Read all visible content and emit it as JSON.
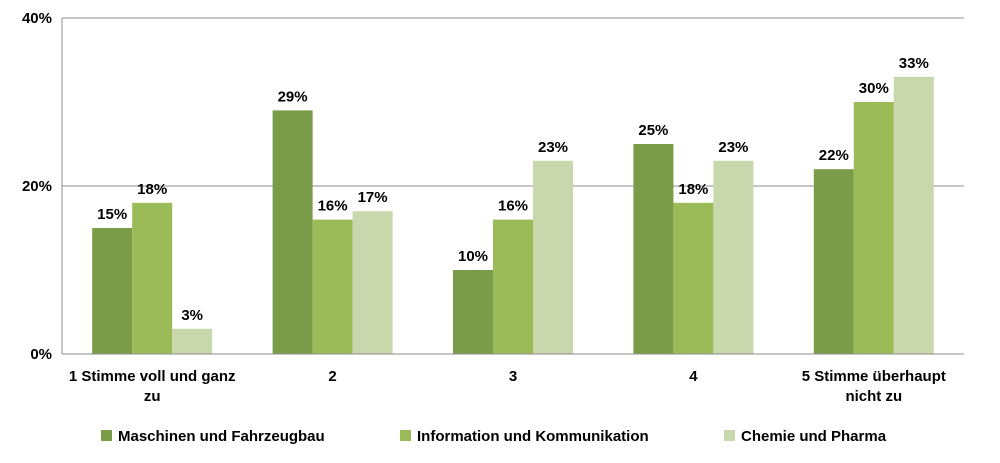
{
  "chart_data": {
    "type": "bar",
    "categories": [
      [
        "1 Stimme voll und ganz",
        "zu"
      ],
      [
        "2"
      ],
      [
        "3"
      ],
      [
        "4"
      ],
      [
        "5 Stimme überhaupt",
        "nicht zu"
      ]
    ],
    "series": [
      {
        "name": "Maschinen und Fahrzeugbau",
        "color": "#7a9b47",
        "values": [
          15,
          29,
          10,
          25,
          22
        ]
      },
      {
        "name": "Information und Kommunikation",
        "color": "#9bbb59",
        "values": [
          18,
          16,
          16,
          18,
          30
        ]
      },
      {
        "name": "Chemie und Pharma",
        "color": "#c9d7ad",
        "values": [
          3,
          17,
          23,
          23,
          33
        ]
      }
    ],
    "ylim": [
      0,
      40
    ],
    "yticks": [
      0,
      20,
      40
    ],
    "ytick_labels": [
      "0%",
      "20%",
      "40%"
    ],
    "value_suffix": "%",
    "grid": true,
    "legend_position": "bottom"
  }
}
